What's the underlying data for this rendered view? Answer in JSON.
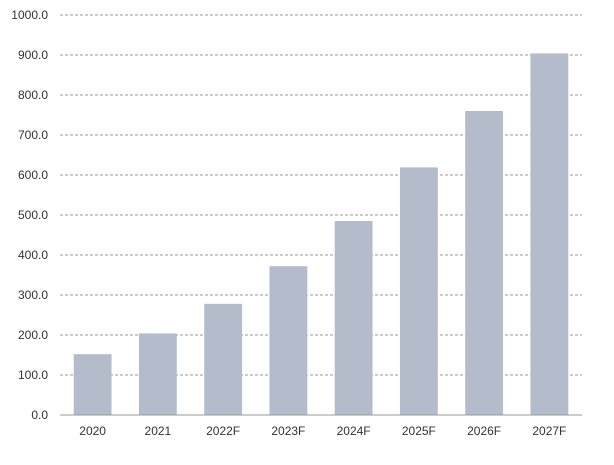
{
  "chart_data": {
    "type": "bar",
    "title": "",
    "xlabel": "",
    "ylabel": "",
    "categories": [
      "2020",
      "2021",
      "2022F",
      "2023F",
      "2024F",
      "2025F",
      "2026F",
      "2027F"
    ],
    "values": [
      152,
      204,
      278,
      372,
      485,
      619,
      760,
      904
    ],
    "ylim": [
      0,
      1000
    ],
    "y_ticks": [
      0,
      100,
      200,
      300,
      400,
      500,
      600,
      700,
      800,
      900,
      1000
    ],
    "y_tick_labels": [
      "0.0",
      "100.0",
      "200.0",
      "300.0",
      "400.0",
      "500.0",
      "600.0",
      "700.0",
      "800.0",
      "900.0",
      "1000.0"
    ],
    "grid": true,
    "legend": "none",
    "bar_color": "#b4bccb",
    "grid_color": "#7a7a7a"
  }
}
